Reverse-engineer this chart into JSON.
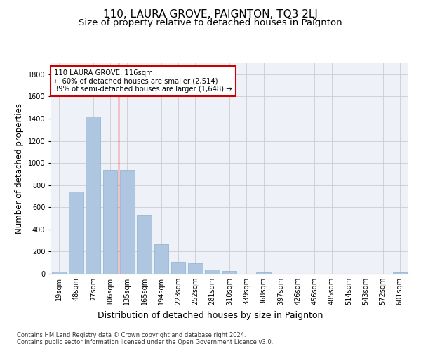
{
  "title": "110, LAURA GROVE, PAIGNTON, TQ3 2LJ",
  "subtitle": "Size of property relative to detached houses in Paignton",
  "xlabel": "Distribution of detached houses by size in Paignton",
  "ylabel": "Number of detached properties",
  "categories": [
    "19sqm",
    "48sqm",
    "77sqm",
    "106sqm",
    "135sqm",
    "165sqm",
    "194sqm",
    "223sqm",
    "252sqm",
    "281sqm",
    "310sqm",
    "339sqm",
    "368sqm",
    "397sqm",
    "426sqm",
    "456sqm",
    "485sqm",
    "514sqm",
    "543sqm",
    "572sqm",
    "601sqm"
  ],
  "values": [
    20,
    740,
    1420,
    940,
    935,
    530,
    265,
    105,
    93,
    35,
    28,
    0,
    15,
    0,
    0,
    0,
    0,
    0,
    0,
    0,
    15
  ],
  "bar_color": "#aec6e0",
  "bar_edgecolor": "#8ab0d0",
  "marker_label": "110 LAURA GROVE: 116sqm",
  "marker_line1": "← 60% of detached houses are smaller (2,514)",
  "marker_line2": "39% of semi-detached houses are larger (1,648) →",
  "annotation_box_color": "#cc0000",
  "ylim": [
    0,
    1900
  ],
  "yticks": [
    0,
    200,
    400,
    600,
    800,
    1000,
    1200,
    1400,
    1600,
    1800
  ],
  "grid_color": "#cccccc",
  "bg_color": "#eef2f8",
  "footer1": "Contains HM Land Registry data © Crown copyright and database right 2024.",
  "footer2": "Contains public sector information licensed under the Open Government Licence v3.0.",
  "title_fontsize": 11,
  "subtitle_fontsize": 9.5,
  "axis_label_fontsize": 8.5,
  "tick_fontsize": 7,
  "footer_fontsize": 6
}
